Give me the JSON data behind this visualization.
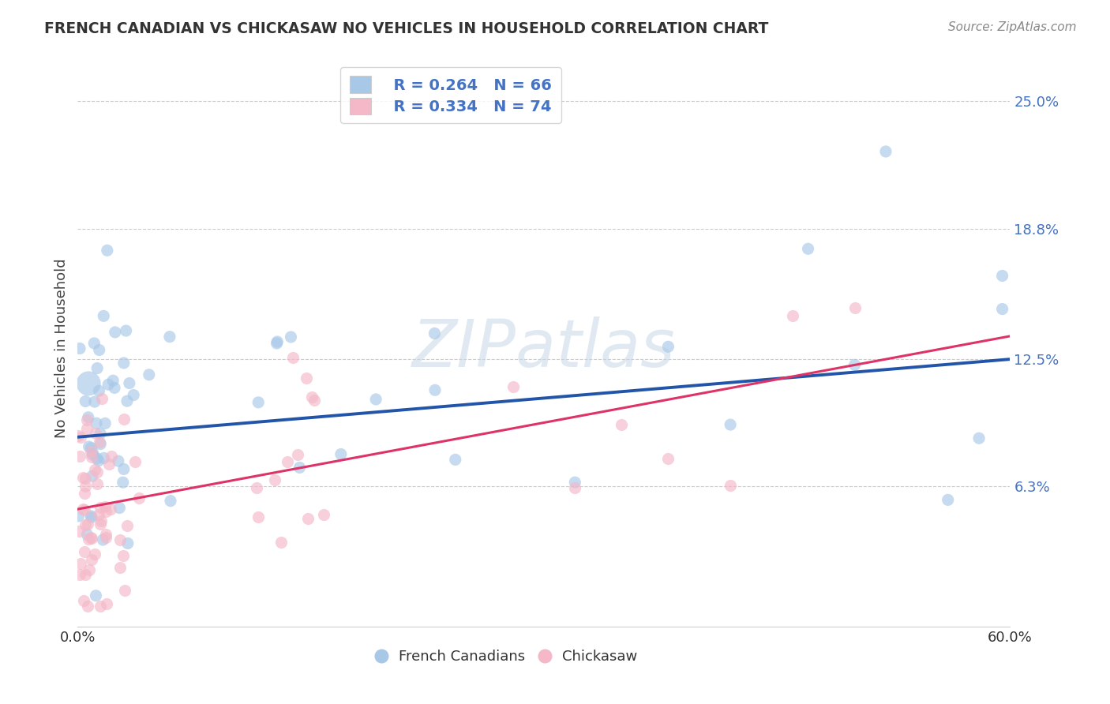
{
  "title": "FRENCH CANADIAN VS CHICKASAW NO VEHICLES IN HOUSEHOLD CORRELATION CHART",
  "source": "Source: ZipAtlas.com",
  "ylabel": "No Vehicles in Household",
  "xlim": [
    0.0,
    0.6
  ],
  "ylim": [
    -0.005,
    0.265
  ],
  "yticks": [
    0.063,
    0.125,
    0.188,
    0.25
  ],
  "ytick_labels": [
    "6.3%",
    "12.5%",
    "18.8%",
    "25.0%"
  ],
  "xticks": [
    0.0,
    0.1,
    0.2,
    0.3,
    0.4,
    0.5,
    0.6
  ],
  "xtick_labels": [
    "0.0%",
    "",
    "",
    "",
    "",
    "",
    "60.0%"
  ],
  "blue_color": "#a8c8e8",
  "pink_color": "#f4b8c8",
  "blue_line_color": "#2255aa",
  "pink_line_color": "#dd3366",
  "watermark": "ZIPatlas",
  "legend_R_blue": "R = 0.264",
  "legend_N_blue": "N = 66",
  "legend_R_pink": "R = 0.334",
  "legend_N_pink": "N = 74",
  "blue_intercept": 0.087,
  "blue_slope": 0.063,
  "pink_intercept": 0.052,
  "pink_slope": 0.14,
  "blue_seed": 10,
  "pink_seed": 20,
  "dot_size": 120
}
